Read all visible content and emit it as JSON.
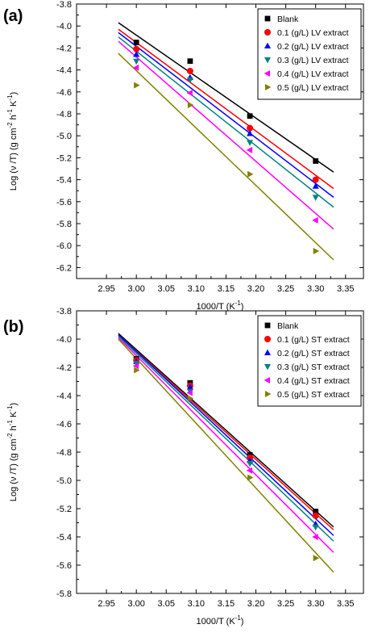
{
  "chart_data": [
    {
      "type": "scatter",
      "panel_label": "(a)",
      "xlabel": "1000/T (K",
      "xlabel_sup": "-1",
      "xlabel_tail": ")",
      "ylabel": "Log (ν /T) (g cm",
      "ylabel_sup1": "-2",
      "ylabel_mid": " h",
      "ylabel_sup2": "-1",
      "ylabel_mid2": " K",
      "ylabel_sup3": "-1",
      "ylabel_tail": ")",
      "xlim": [
        2.9,
        3.38
      ],
      "ylim": [
        -6.3,
        -3.8
      ],
      "xticks": [
        2.95,
        3.0,
        3.05,
        3.1,
        3.15,
        3.2,
        3.25,
        3.3,
        3.35
      ],
      "xtick_labels": [
        "2.95",
        "3.00",
        "3.05",
        "3.10",
        "3.15",
        "3.20",
        "3.25",
        "3.30",
        "3.35"
      ],
      "yticks": [
        -6.2,
        -6.0,
        -5.8,
        -5.6,
        -5.4,
        -5.2,
        -5.0,
        -4.8,
        -4.6,
        -4.4,
        -4.2,
        -4.0,
        -3.8
      ],
      "ytick_labels": [
        "-6.2",
        "-6.0",
        "-5.8",
        "-5.6",
        "-5.4",
        "-5.2",
        "-5.0",
        "-4.8",
        "-4.6",
        "-4.4",
        "-4.2",
        "-4.0",
        "-3.8"
      ],
      "legend_position": "top-right",
      "fit_range": [
        2.97,
        3.33
      ],
      "series": [
        {
          "name": "Blank",
          "marker": "square",
          "color": "#000000",
          "x": [
            3.0,
            3.09,
            3.19,
            3.3
          ],
          "y": [
            -4.15,
            -4.32,
            -4.82,
            -5.23
          ],
          "fit": [
            -3.97,
            -5.33
          ]
        },
        {
          "name": "0.1 (g/L) LV extract",
          "marker": "circle",
          "color": "#ff0000",
          "x": [
            3.0,
            3.09,
            3.19,
            3.3
          ],
          "y": [
            -4.21,
            -4.41,
            -4.93,
            -5.4
          ],
          "fit": [
            -4.03,
            -5.48
          ]
        },
        {
          "name": "0.2 (g/L) LV extract",
          "marker": "triangle-up",
          "color": "#0000ff",
          "x": [
            3.0,
            3.09,
            3.19,
            3.3
          ],
          "y": [
            -4.26,
            -4.47,
            -4.98,
            -5.46
          ],
          "fit": [
            -4.06,
            -5.56
          ]
        },
        {
          "name": "0.3 (g/L) LV extract",
          "marker": "triangle-down",
          "color": "#008080",
          "x": [
            3.0,
            3.09,
            3.19,
            3.3
          ],
          "y": [
            -4.32,
            -4.49,
            -5.06,
            -5.56
          ],
          "fit": [
            -4.1,
            -5.65
          ]
        },
        {
          "name": "0.4 (g/L) LV extract",
          "marker": "triangle-left",
          "color": "#ff00ff",
          "x": [
            3.0,
            3.09,
            3.19,
            3.3
          ],
          "y": [
            -4.38,
            -4.61,
            -5.13,
            -5.77
          ],
          "fit": [
            -4.14,
            -5.85
          ]
        },
        {
          "name": "0.5 (g/L) LV extract",
          "marker": "triangle-right",
          "color": "#808000",
          "x": [
            3.0,
            3.09,
            3.19,
            3.3
          ],
          "y": [
            -4.54,
            -4.72,
            -5.35,
            -6.05
          ],
          "fit": [
            -4.25,
            -6.13
          ]
        }
      ]
    },
    {
      "type": "scatter",
      "panel_label": "(b)",
      "xlabel": "1000/T (K",
      "xlabel_sup": "-1",
      "xlabel_tail": ")",
      "ylabel": "Log (ν /T) (g cm",
      "ylabel_sup1": "-2",
      "ylabel_mid": " h",
      "ylabel_sup2": "-1",
      "ylabel_mid2": " K",
      "ylabel_sup3": "-1",
      "ylabel_tail": ")",
      "xlim": [
        2.9,
        3.38
      ],
      "ylim": [
        -5.8,
        -3.8
      ],
      "xticks": [
        2.95,
        3.0,
        3.05,
        3.1,
        3.15,
        3.2,
        3.25,
        3.3,
        3.35
      ],
      "xtick_labels": [
        "2.95",
        "3.00",
        "3.05",
        "3.10",
        "3.15",
        "3.20",
        "3.25",
        "3.30",
        "3.35"
      ],
      "yticks": [
        -5.8,
        -5.6,
        -5.4,
        -5.2,
        -5.0,
        -4.8,
        -4.6,
        -4.4,
        -4.2,
        -4.0,
        -3.8
      ],
      "ytick_labels": [
        "-5.8",
        "-5.6",
        "-5.4",
        "-5.2",
        "-5.0",
        "-4.8",
        "-4.6",
        "-4.4",
        "-4.2",
        "-4.0",
        "-3.8"
      ],
      "legend_position": "top-right",
      "fit_range": [
        2.97,
        3.33
      ],
      "series": [
        {
          "name": "Blank",
          "marker": "square",
          "color": "#000000",
          "x": [
            3.0,
            3.09,
            3.19,
            3.3
          ],
          "y": [
            -4.14,
            -4.31,
            -4.82,
            -5.22
          ],
          "fit": [
            -3.96,
            -5.33
          ]
        },
        {
          "name": "0.1 (g/L) ST extract",
          "marker": "circle",
          "color": "#ff0000",
          "x": [
            3.0,
            3.09,
            3.19,
            3.3
          ],
          "y": [
            -4.15,
            -4.33,
            -4.84,
            -5.25
          ],
          "fit": [
            -3.97,
            -5.35
          ]
        },
        {
          "name": "0.2 (g/L) ST extract",
          "marker": "triangle-up",
          "color": "#0000ff",
          "x": [
            3.0,
            3.09,
            3.19,
            3.3
          ],
          "y": [
            -4.16,
            -4.34,
            -4.86,
            -5.31
          ],
          "fit": [
            -3.97,
            -5.39
          ]
        },
        {
          "name": "0.3 (g/L) ST extract",
          "marker": "triangle-down",
          "color": "#008080",
          "x": [
            3.0,
            3.09,
            3.19,
            3.3
          ],
          "y": [
            -4.17,
            -4.37,
            -4.88,
            -5.33
          ],
          "fit": [
            -3.98,
            -5.43
          ]
        },
        {
          "name": "0.4 (g/L) ST extract",
          "marker": "triangle-left",
          "color": "#ff00ff",
          "x": [
            3.0,
            3.09,
            3.19,
            3.3
          ],
          "y": [
            -4.19,
            -4.38,
            -4.93,
            -5.4
          ],
          "fit": [
            -3.99,
            -5.51
          ]
        },
        {
          "name": "0.5 (g/L) ST extract",
          "marker": "triangle-right",
          "color": "#808000",
          "x": [
            3.0,
            3.09,
            3.19,
            3.3
          ],
          "y": [
            -4.22,
            -4.42,
            -4.98,
            -5.55
          ],
          "fit": [
            -4.0,
            -5.65
          ]
        }
      ]
    }
  ]
}
